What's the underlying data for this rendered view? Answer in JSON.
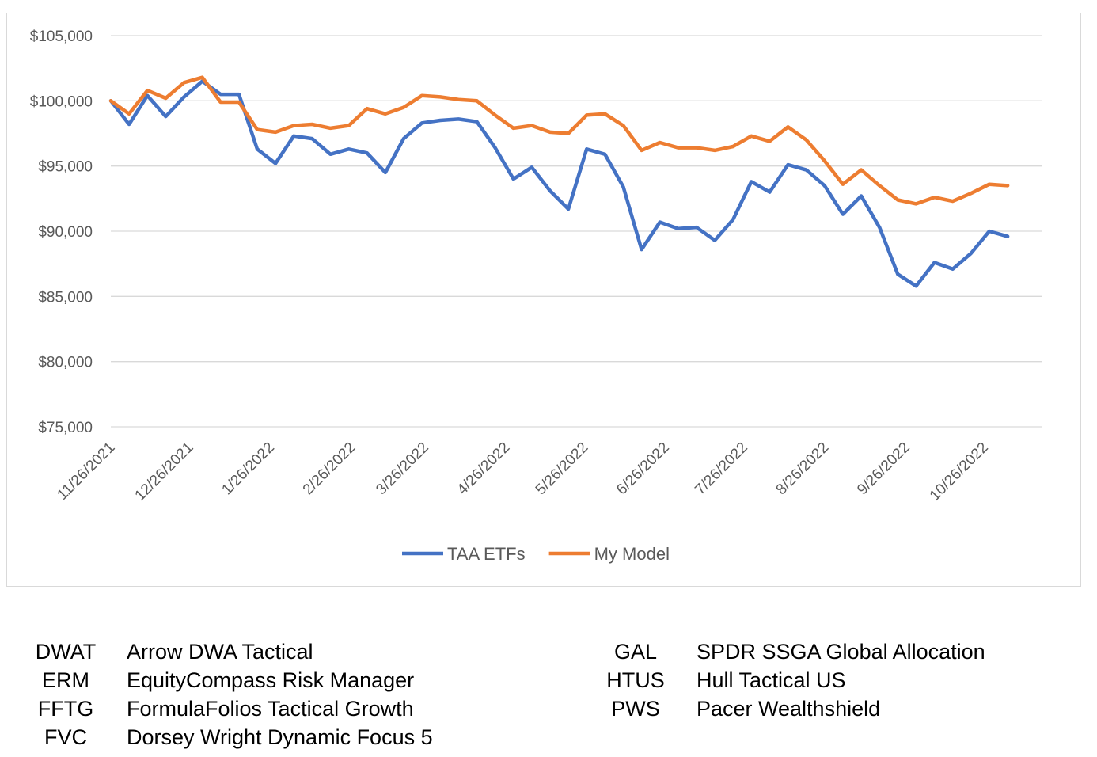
{
  "chart_data": {
    "type": "line",
    "x": [
      "11/26/2021",
      "12/3/2021",
      "12/10/2021",
      "12/17/2021",
      "12/24/2021",
      "12/31/2021",
      "1/7/2022",
      "1/14/2022",
      "1/21/2022",
      "1/28/2022",
      "2/4/2022",
      "2/11/2022",
      "2/18/2022",
      "2/25/2022",
      "3/4/2022",
      "3/11/2022",
      "3/18/2022",
      "3/25/2022",
      "4/1/2022",
      "4/8/2022",
      "4/15/2022",
      "4/22/2022",
      "4/29/2022",
      "5/6/2022",
      "5/13/2022",
      "5/20/2022",
      "5/27/2022",
      "6/3/2022",
      "6/10/2022",
      "6/17/2022",
      "6/24/2022",
      "7/1/2022",
      "7/8/2022",
      "7/15/2022",
      "7/22/2022",
      "7/29/2022",
      "8/5/2022",
      "8/12/2022",
      "8/19/2022",
      "8/26/2022",
      "9/2/2022",
      "9/9/2022",
      "9/16/2022",
      "9/23/2022",
      "9/30/2022",
      "10/7/2022",
      "10/14/2022",
      "10/21/2022",
      "10/28/2022",
      "11/4/2022"
    ],
    "series": [
      {
        "name": "TAA ETFs",
        "color": "#4472c4",
        "values": [
          100000,
          98200,
          100400,
          98800,
          100300,
          101500,
          100500,
          100500,
          96300,
          95200,
          97300,
          97100,
          95900,
          96300,
          96000,
          94500,
          97100,
          98300,
          98500,
          98600,
          98400,
          96400,
          94000,
          94900,
          93100,
          91700,
          96300,
          95900,
          93400,
          88600,
          90700,
          90200,
          90300,
          89300,
          90900,
          93800,
          93000,
          95100,
          94700,
          93500,
          91300,
          92700,
          90300,
          86700,
          85800,
          87600,
          87100,
          88300,
          90000,
          89600
        ]
      },
      {
        "name": "My Model",
        "color": "#ed7d31",
        "values": [
          100000,
          99000,
          100800,
          100200,
          101400,
          101800,
          99900,
          99900,
          97800,
          97600,
          98100,
          98200,
          97900,
          98100,
          99400,
          99000,
          99500,
          100400,
          100300,
          100100,
          100000,
          98900,
          97900,
          98100,
          97600,
          97500,
          98900,
          99000,
          98100,
          96200,
          96800,
          96400,
          96400,
          96200,
          96500,
          97300,
          96900,
          98000,
          97000,
          95400,
          93600,
          94700,
          93500,
          92400,
          92100,
          92600,
          92300,
          92900,
          93600,
          93500
        ]
      }
    ],
    "xlim": [
      "11/26/2021",
      "11/17/2022"
    ],
    "xticks": [
      "11/26/2021",
      "12/26/2021",
      "1/26/2022",
      "2/26/2022",
      "3/26/2022",
      "4/26/2022",
      "5/26/2022",
      "6/26/2022",
      "7/26/2022",
      "8/26/2022",
      "9/26/2022",
      "10/26/2022"
    ],
    "ylim": [
      75000,
      105000
    ],
    "yticks": [
      {
        "value": 75000,
        "label": "$75,000"
      },
      {
        "value": 80000,
        "label": "$80,000"
      },
      {
        "value": 85000,
        "label": "$85,000"
      },
      {
        "value": 90000,
        "label": "$90,000"
      },
      {
        "value": 95000,
        "label": "$95,000"
      },
      {
        "value": 100000,
        "label": "$100,000"
      },
      {
        "value": 105000,
        "label": "$105,000"
      }
    ],
    "grid": true,
    "legend": "bottom"
  },
  "table": {
    "left": [
      [
        "DWAT",
        "Arrow DWA Tactical"
      ],
      [
        "ERM",
        "EquityCompass Risk Manager"
      ],
      [
        "FFTG",
        "FormulaFolios Tactical Growth"
      ],
      [
        "FVC",
        "Dorsey Wright Dynamic Focus 5"
      ]
    ],
    "right": [
      [
        "GAL",
        "SPDR SSGA Global Allocation"
      ],
      [
        "HTUS",
        "Hull Tactical US"
      ],
      [
        "PWS",
        "Pacer Wealthshield"
      ]
    ]
  }
}
